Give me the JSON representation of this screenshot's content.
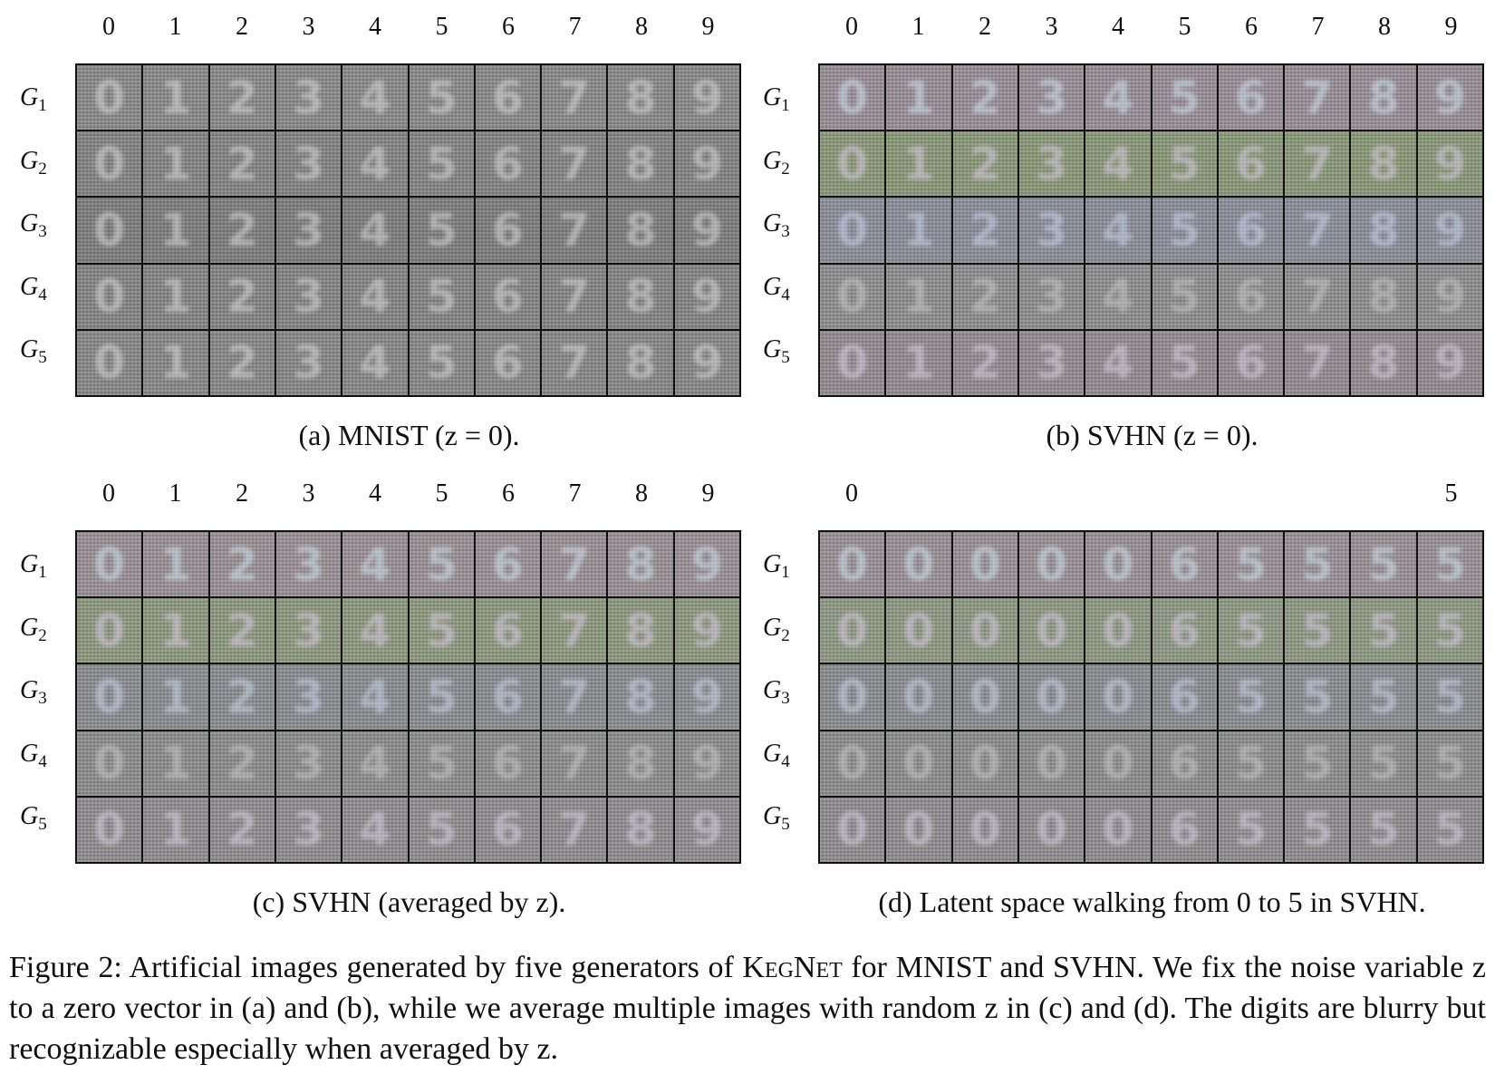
{
  "column_labels": [
    "0",
    "1",
    "2",
    "3",
    "4",
    "5",
    "6",
    "7",
    "8",
    "9"
  ],
  "walk_column_labels": {
    "start": "0",
    "end": "5"
  },
  "row_labels": [
    {
      "base": "G",
      "sub": "1"
    },
    {
      "base": "G",
      "sub": "2"
    },
    {
      "base": "G",
      "sub": "3"
    },
    {
      "base": "G",
      "sub": "4"
    },
    {
      "base": "G",
      "sub": "5"
    }
  ],
  "panels": {
    "a": {
      "caption": "(a) MNIST (z = 0).",
      "digits": [
        "0",
        "1",
        "2",
        "3",
        "4",
        "5",
        "6",
        "7",
        "8",
        "9"
      ],
      "style": "mnist",
      "row_tints": [
        "#8a8a8a",
        "#858585",
        "#7e7e7e",
        "#858585",
        "#888888"
      ]
    },
    "b": {
      "caption": "(b) SVHN (z = 0).",
      "digits": [
        "0",
        "1",
        "2",
        "3",
        "4",
        "5",
        "6",
        "7",
        "8",
        "9"
      ],
      "style": "svhn",
      "row_tints": [
        "#9a8f98",
        "#8c9a78",
        "#8c8f9a",
        "#8f8f8f",
        "#958c92"
      ]
    },
    "c": {
      "caption": "(c) SVHN (averaged by z).",
      "digits": [
        "0",
        "1",
        "2",
        "3",
        "4",
        "5",
        "6",
        "7",
        "8",
        "9"
      ],
      "style": "svhn",
      "row_tints": [
        "#9b9296",
        "#8f9a80",
        "#8c8e92",
        "#8e8e8e",
        "#938d90"
      ]
    },
    "d": {
      "caption": "(d) Latent space walking from 0 to 5 in SVHN.",
      "digits": [
        "0",
        "0",
        "0",
        "0",
        "0",
        "6",
        "5",
        "5",
        "5",
        "5"
      ],
      "style": "svhn",
      "row_tints": [
        "#9a9296",
        "#8f9a84",
        "#8c8e92",
        "#8e8e8e",
        "#938d90"
      ]
    }
  },
  "figure_caption": {
    "label": "Figure 2:",
    "text_1": "Artificial images generated by five generators of",
    "method": "KegNet",
    "text_2": "for MNIST and SVHN. We fix the noise variable z to a zero vector in (a) and (b), while we average multiple images with random z in (c) and (d). The digits are blurry but recognizable especially when averaged by z."
  },
  "colors": {
    "frame": "#111111",
    "mnist_glyph": "#d8d8d8",
    "svhn_glyphs": [
      "#cfe3ee",
      "#d9c9e6",
      "#c9d3e8",
      "#c8c8c8",
      "#d6d0e0"
    ]
  }
}
